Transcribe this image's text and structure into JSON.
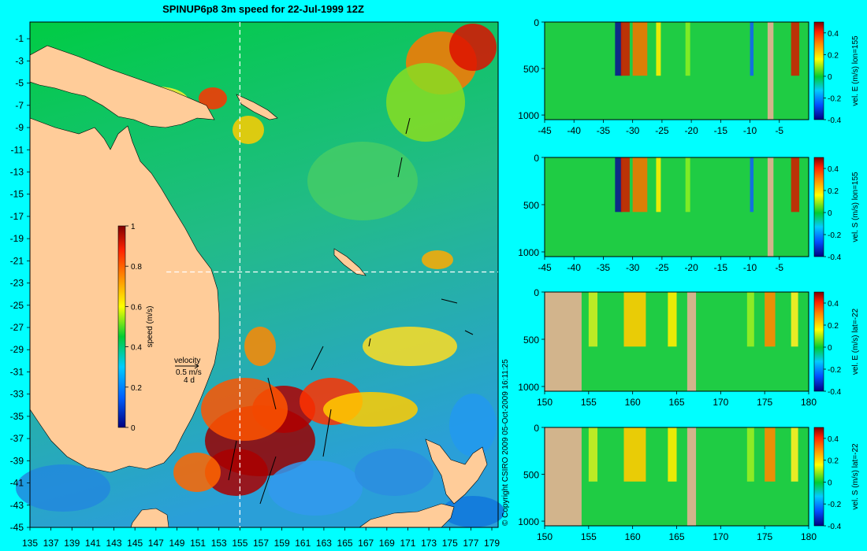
{
  "title": "SPINUP6p8 3m speed for 22-Jul-1999 12Z",
  "copyright": "© Copyright CSIRO 2009   05-Oct-2009 16:11:25",
  "map": {
    "lon_ticks": [
      "135",
      "137",
      "139",
      "141",
      "143",
      "145",
      "147",
      "149",
      "151",
      "153",
      "155",
      "157",
      "159",
      "161",
      "163",
      "165",
      "167",
      "169",
      "171",
      "173",
      "175",
      "177",
      "179"
    ],
    "lat_ticks": [
      "-1",
      "-3",
      "-5",
      "-7",
      "-9",
      "-11",
      "-13",
      "-15",
      "-17",
      "-19",
      "-21",
      "-23",
      "-25",
      "-27",
      "-29",
      "-31",
      "-33",
      "-35",
      "-37",
      "-39",
      "-41",
      "-43",
      "-45"
    ],
    "section_lon": 155,
    "section_lat": -22,
    "colorbar": {
      "label": "speed (m/s)",
      "ticks": [
        "1",
        "0.8",
        "0.6",
        "0.4",
        "0.2",
        "0"
      ]
    },
    "velocity_key": {
      "title": "velocity",
      "speed": "0.5 m/s",
      "duration": "4 d"
    }
  },
  "colors": {
    "land": "#ffcc99",
    "section_land": "#d2b48c",
    "background": "#00ffff",
    "low": "#000080",
    "zero": "#00cc33",
    "high": "#800000"
  },
  "chart_data": [
    {
      "type": "heatmap",
      "title": "vel. E (m/s) lon=155",
      "x": "latitude",
      "xlim": [
        -45,
        0
      ],
      "x_ticks": [
        "-45",
        "-40",
        "-35",
        "-30",
        "-25",
        "-20",
        "-15",
        "-10",
        "-5"
      ],
      "y_ticks": [
        "0",
        "500",
        "1000"
      ],
      "ylim": [
        1050,
        0
      ],
      "clim": [
        -0.4,
        0.5
      ],
      "cbar_ticks": [
        "0.4",
        "0.2",
        "0",
        "-0.2",
        "-0.4"
      ]
    },
    {
      "type": "heatmap",
      "title": "vel. S (m/s) lon=155",
      "x": "latitude",
      "xlim": [
        -45,
        0
      ],
      "x_ticks": [
        "-45",
        "-40",
        "-35",
        "-30",
        "-25",
        "-20",
        "-15",
        "-10",
        "-5"
      ],
      "y_ticks": [
        "0",
        "500",
        "1000"
      ],
      "ylim": [
        1050,
        0
      ],
      "clim": [
        -0.4,
        0.5
      ],
      "cbar_ticks": [
        "0.4",
        "0.2",
        "0",
        "-0.2",
        "-0.4"
      ]
    },
    {
      "type": "heatmap",
      "title": "vel. E (m/s) lat=-22",
      "x": "longitude",
      "xlim": [
        150,
        180
      ],
      "x_ticks": [
        "150",
        "155",
        "160",
        "165",
        "170",
        "175",
        "180"
      ],
      "y_ticks": [
        "0",
        "500",
        "1000"
      ],
      "ylim": [
        1050,
        0
      ],
      "clim": [
        -0.4,
        0.5
      ],
      "cbar_ticks": [
        "0.4",
        "0.2",
        "0",
        "-0.2",
        "-0.4"
      ]
    },
    {
      "type": "heatmap",
      "title": "vel. S (m/s) lat=-22",
      "x": "longitude",
      "xlim": [
        150,
        180
      ],
      "x_ticks": [
        "150",
        "155",
        "160",
        "165",
        "170",
        "175",
        "180"
      ],
      "y_ticks": [
        "0",
        "500",
        "1000"
      ],
      "ylim": [
        1050,
        0
      ],
      "clim": [
        -0.4,
        0.5
      ],
      "cbar_ticks": [
        "0.4",
        "0.2",
        "0",
        "-0.2",
        "-0.4"
      ]
    }
  ]
}
